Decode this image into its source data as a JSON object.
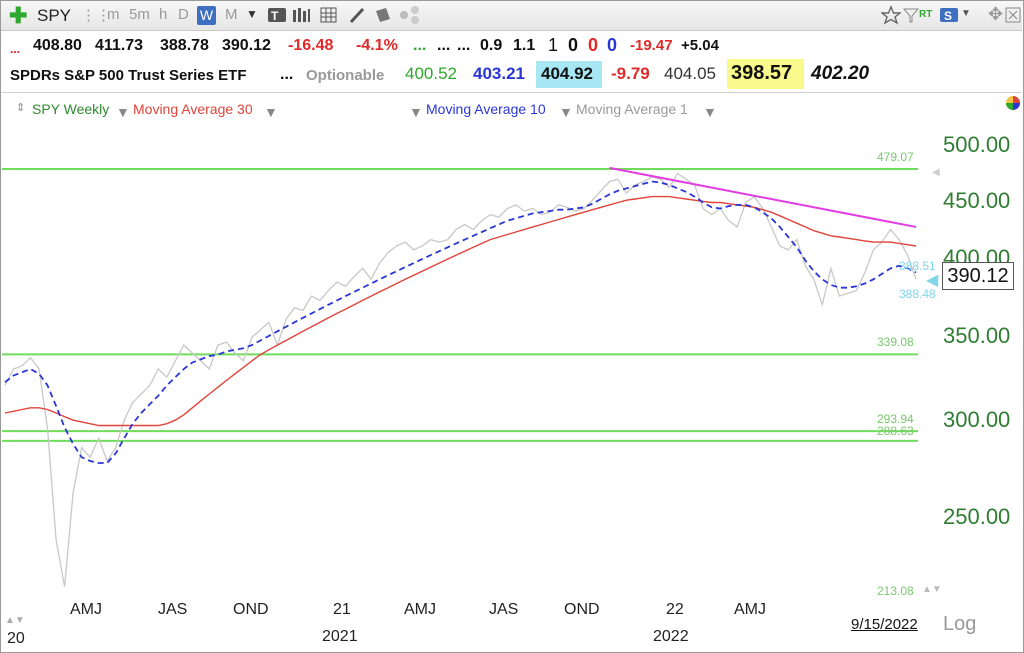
{
  "toolbar": {
    "symbol": "SPY",
    "timeframes": [
      "m",
      "5m",
      "h",
      "D",
      "W",
      "M"
    ],
    "active_timeframe": "W"
  },
  "quote_row1": {
    "dots_red": "...",
    "open": "408.80",
    "high": "411.73",
    "low": "388.78",
    "close": "390.12",
    "change": "-16.48",
    "change_pct": "-4.1%",
    "dots_green": "...",
    "dots_a": "...",
    "dots_b": "...",
    "v1": "0.9",
    "v2": "1.1",
    "v3": "1",
    "v4": "0",
    "v5": "0",
    "v6": "0",
    "v7": "-19.47",
    "v8": "+5.04"
  },
  "quote_row2": {
    "name": "SPDRs S&P 500 Trust Series ETF",
    "dots": "...",
    "optionable": "Optionable",
    "p1": "400.52",
    "p2": "403.21",
    "p3": "404.92",
    "p4": "-9.79",
    "p5": "404.05",
    "p6": "398.57",
    "p7": "402.20"
  },
  "legend": {
    "series1": "SPY Weekly",
    "series2": "Moving Average 30",
    "series3": "Moving Average 10",
    "series4": "Moving Average 1"
  },
  "colors": {
    "price": "#c8c8c8",
    "ma30": "#e0443a",
    "ma10": "#2b36d6",
    "trend": "#e23ce2",
    "levels": "#6fdc5c",
    "axis_text": "#2f7d32"
  },
  "chart_data": {
    "type": "line",
    "title": "",
    "xlabel": "",
    "ylabel": "",
    "y_ticks": [
      "500.00",
      "450.00",
      "400.00",
      "350.00",
      "300.00",
      "250.00"
    ],
    "ylim": [
      205,
      520
    ],
    "log_scale": true,
    "x_tick_labels": [
      "AMJ",
      "JAS",
      "OND",
      "21",
      "AMJ",
      "JAS",
      "OND",
      "22",
      "AMJ"
    ],
    "x_year_labels": [
      "2021",
      "2022"
    ],
    "x_left_label": "20",
    "date_label": "9/15/2022",
    "scale_label": "Log",
    "last_price_label": "390.12",
    "level_lines": [
      {
        "value": 479.07,
        "label": "479.07"
      },
      {
        "value": 339.08,
        "label": "339.08"
      },
      {
        "value": 293.94,
        "label": "293.94"
      },
      {
        "value": 288.63,
        "label": "288.63"
      }
    ],
    "level_floor_label": "213.08",
    "ma_labels": [
      {
        "value": 388.51,
        "label": "388.51"
      },
      {
        "value": 388.48,
        "label": "388.48"
      }
    ],
    "series": [
      {
        "name": "SPY Weekly",
        "values": [
          320,
          330,
          332,
          337,
          330,
          295,
          240,
          220,
          262,
          285,
          280,
          290,
          278,
          285,
          300,
          310,
          315,
          320,
          330,
          325,
          335,
          345,
          340,
          335,
          330,
          345,
          347,
          340,
          335,
          350,
          355,
          360,
          345,
          362,
          370,
          368,
          378,
          375,
          382,
          388,
          385,
          392,
          398,
          390,
          402,
          410,
          415,
          418,
          412,
          415,
          420,
          418,
          420,
          428,
          432,
          428,
          435,
          440,
          438,
          445,
          448,
          443,
          445,
          440,
          442,
          448,
          446,
          443,
          445,
          452,
          460,
          468,
          470,
          458,
          465,
          468,
          472,
          470,
          463,
          475,
          470,
          465,
          445,
          440,
          445,
          435,
          430,
          450,
          455,
          445,
          430,
          415,
          412,
          420,
          400,
          390,
          372,
          398,
          378,
          380,
          382,
          395,
          412,
          418,
          428,
          420,
          408,
          390
        ]
      },
      {
        "name": "Moving Average 10",
        "values": [
          322,
          326,
          328,
          330,
          327,
          320,
          308,
          296,
          287,
          280,
          278,
          277,
          277,
          282,
          290,
          298,
          304,
          309,
          314,
          320,
          325,
          330,
          334,
          336,
          338,
          339,
          341,
          342,
          343,
          345,
          348,
          351,
          354,
          357,
          360,
          363,
          366,
          369,
          372,
          375,
          378,
          381,
          384,
          387,
          390,
          393,
          396,
          399,
          402,
          405,
          408,
          411,
          414,
          417,
          420,
          423,
          426,
          429,
          432,
          435,
          437,
          439,
          441,
          442,
          443,
          444,
          444,
          445,
          446,
          449,
          453,
          457,
          460,
          462,
          464,
          466,
          468,
          467,
          465,
          462,
          459,
          455,
          450,
          446,
          445,
          447,
          448,
          448,
          446,
          442,
          437,
          430,
          422,
          414,
          404,
          396,
          390,
          386,
          384,
          384,
          385,
          387,
          390,
          394,
          398,
          400,
          398,
          395
        ]
      },
      {
        "name": "Moving Average 30",
        "values": [
          304,
          305,
          306,
          307,
          307,
          306,
          304,
          302,
          300,
          299,
          298,
          297,
          297,
          297,
          297,
          297,
          297,
          297,
          297,
          298,
          300,
          303,
          307,
          311,
          315,
          319,
          323,
          327,
          331,
          335,
          339,
          342,
          345,
          348,
          351,
          354,
          357,
          360,
          363,
          366,
          369,
          372,
          375,
          378,
          381,
          384,
          387,
          390,
          393,
          396,
          399,
          402,
          405,
          408,
          411,
          414,
          417,
          420,
          422,
          424,
          426,
          428,
          430,
          432,
          434,
          436,
          438,
          440,
          442,
          444,
          446,
          448,
          450,
          452,
          453,
          454,
          455,
          455,
          455,
          454,
          453,
          452,
          451,
          450,
          450,
          449,
          448,
          447,
          446,
          444,
          442,
          439,
          436,
          433,
          430,
          427,
          425,
          423,
          422,
          421,
          420,
          419,
          418,
          418,
          418,
          417,
          416,
          415
        ]
      },
      {
        "name": "trend line",
        "x_start_index": 71,
        "x_end_index": 107,
        "values": [
          480,
          430
        ]
      }
    ]
  }
}
